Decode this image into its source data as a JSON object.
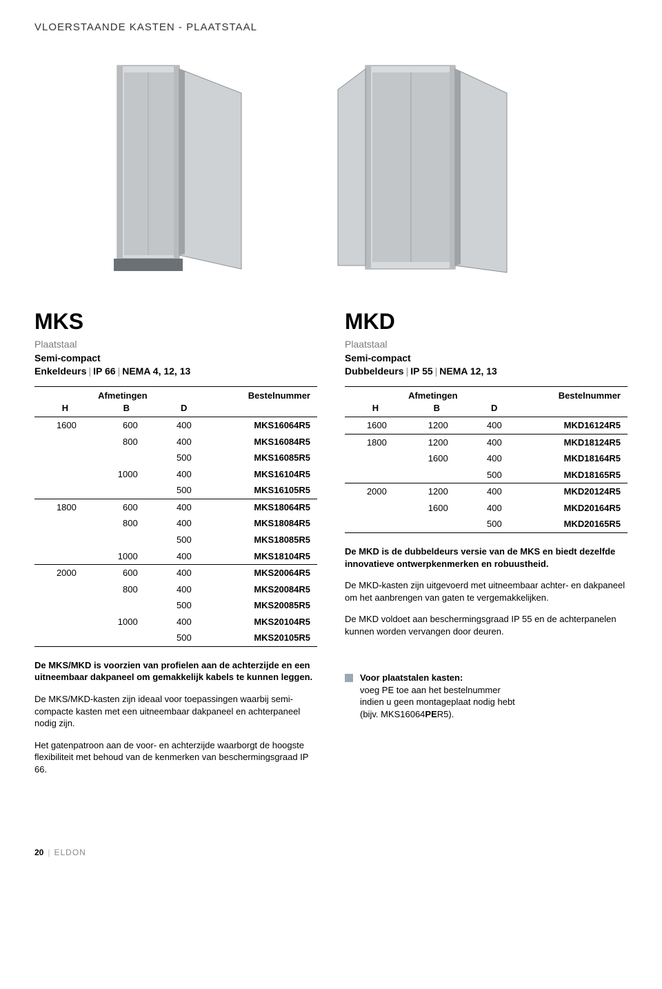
{
  "header": "VLOERSTAANDE KASTEN - PLAATSTAAL",
  "left": {
    "code": "MKS",
    "material": "Plaatstaal",
    "variant": "Semi-compact",
    "door": "Enkeldeurs",
    "ip": "IP 66",
    "nema": "NEMA 4, 12, 13",
    "table": {
      "afm_label": "Afmetingen",
      "bn_label": "Bestelnummer",
      "cols": [
        "H",
        "B",
        "D"
      ],
      "rows": [
        {
          "h": "1600",
          "b": "600",
          "d": "400",
          "bn": "MKS16064R5",
          "group": true
        },
        {
          "h": "",
          "b": "800",
          "d": "400",
          "bn": "MKS16084R5"
        },
        {
          "h": "",
          "b": "",
          "d": "500",
          "bn": "MKS16085R5"
        },
        {
          "h": "",
          "b": "1000",
          "d": "400",
          "bn": "MKS16104R5"
        },
        {
          "h": "",
          "b": "",
          "d": "500",
          "bn": "MKS16105R5"
        },
        {
          "h": "1800",
          "b": "600",
          "d": "400",
          "bn": "MKS18064R5",
          "group": true
        },
        {
          "h": "",
          "b": "800",
          "d": "400",
          "bn": "MKS18084R5"
        },
        {
          "h": "",
          "b": "",
          "d": "500",
          "bn": "MKS18085R5"
        },
        {
          "h": "",
          "b": "1000",
          "d": "400",
          "bn": "MKS18104R5"
        },
        {
          "h": "2000",
          "b": "600",
          "d": "400",
          "bn": "MKS20064R5",
          "group": true
        },
        {
          "h": "",
          "b": "800",
          "d": "400",
          "bn": "MKS20084R5"
        },
        {
          "h": "",
          "b": "",
          "d": "500",
          "bn": "MKS20085R5"
        },
        {
          "h": "",
          "b": "1000",
          "d": "400",
          "bn": "MKS20104R5"
        },
        {
          "h": "",
          "b": "",
          "d": "500",
          "bn": "MKS20105R5"
        }
      ]
    },
    "p1": "De MKS/MKD is voorzien van profielen aan de achterzijde en een uitneembaar dakpaneel om gemakkelijk kabels te kunnen leggen.",
    "p2": "De MKS/MKD-kasten zijn ideaal voor toepassingen waarbij semi-compacte kasten met een uitneembaar dakpaneel en achterpaneel nodig zijn.",
    "p3": "Het gatenpatroon aan de voor- en achterzijde waarborgt de hoogste flexibiliteit met behoud van de kenmerken van beschermingsgraad IP 66."
  },
  "right": {
    "code": "MKD",
    "material": "Plaatstaal",
    "variant": "Semi-compact",
    "door": "Dubbeldeurs",
    "ip": "IP 55",
    "nema": "NEMA 12, 13",
    "table": {
      "afm_label": "Afmetingen",
      "bn_label": "Bestelnummer",
      "cols": [
        "H",
        "B",
        "D"
      ],
      "rows": [
        {
          "h": "1600",
          "b": "1200",
          "d": "400",
          "bn": "MKD16124R5",
          "group": true
        },
        {
          "h": "1800",
          "b": "1200",
          "d": "400",
          "bn": "MKD18124R5",
          "group": true
        },
        {
          "h": "",
          "b": "1600",
          "d": "400",
          "bn": "MKD18164R5"
        },
        {
          "h": "",
          "b": "",
          "d": "500",
          "bn": "MKD18165R5"
        },
        {
          "h": "2000",
          "b": "1200",
          "d": "400",
          "bn": "MKD20124R5",
          "group": true
        },
        {
          "h": "",
          "b": "1600",
          "d": "400",
          "bn": "MKD20164R5"
        },
        {
          "h": "",
          "b": "",
          "d": "500",
          "bn": "MKD20165R5"
        }
      ]
    },
    "p1": "De MKD is de dubbeldeurs versie van de MKS en biedt dezelfde innovatieve ontwerpkenmerken en robuustheid.",
    "p2": "De MKD-kasten zijn uitgevoerd met uitneembaar achter- en dakpaneel om het aanbrengen van gaten te vergemakkelijken.",
    "p3": "De MKD voldoet aan beschermingsgraad IP 55 en de achterpanelen kunnen worden vervangen door deuren.",
    "note_bold": "Voor plaatstalen kasten:",
    "note_line1": "voeg PE toe aan het bestelnummer",
    "note_line2": "indien u geen montageplaat nodig hebt",
    "note_line3_a": "(bijv. MKS16064",
    "note_line3_b": "PE",
    "note_line3_c": "R5)."
  },
  "footer": {
    "page": "20",
    "brand": "ELDON"
  },
  "colors": {
    "cabinet_light": "#d8dadb",
    "cabinet_mid": "#b8bcbe",
    "cabinet_dark": "#8e9294",
    "cabinet_shadow": "#5a5e60",
    "base": "#6b7075"
  }
}
